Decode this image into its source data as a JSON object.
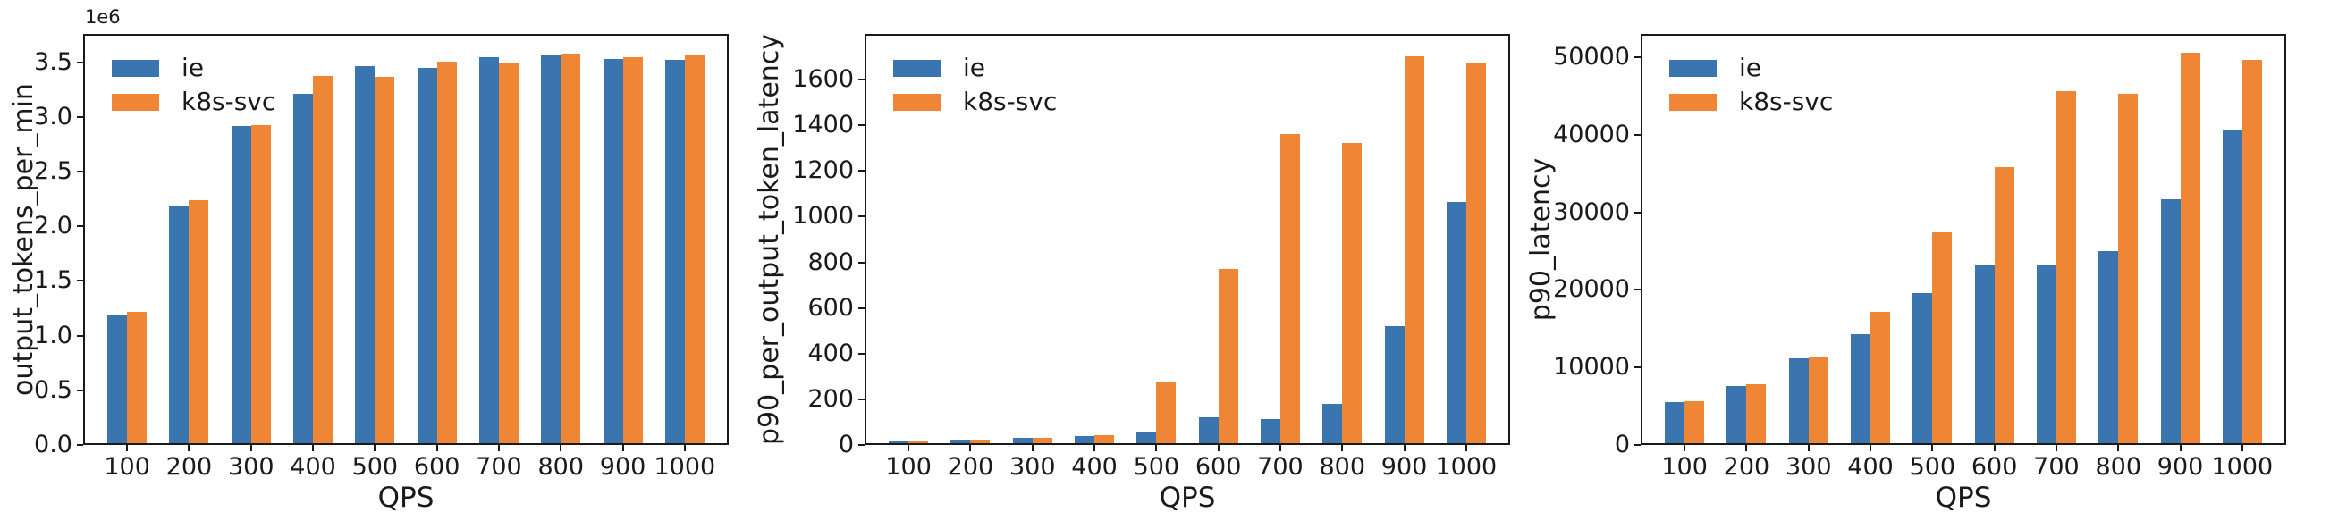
{
  "figure": {
    "background": "#ffffff",
    "axis_color": "#1a1a1a",
    "series_names": [
      "ie",
      "k8s-svc"
    ],
    "series_colors": [
      "#3B75AF",
      "#EF8636"
    ]
  },
  "chart_data": [
    {
      "type": "bar",
      "title": "",
      "ylabel": "output_tokens_per_min",
      "xlabel": "QPS",
      "offset_text": "1e6",
      "legend_position": "upper left",
      "grid": false,
      "categories": [
        "100",
        "200",
        "300",
        "400",
        "500",
        "600",
        "700",
        "800",
        "900",
        "1000"
      ],
      "series": [
        {
          "name": "ie",
          "color": "#3B75AF",
          "values": [
            1170000,
            2170000,
            2900000,
            3200000,
            3450000,
            3430000,
            3530000,
            3550000,
            3515000,
            3510000
          ]
        },
        {
          "name": "k8s-svc",
          "color": "#EF8636",
          "values": [
            1200000,
            2220000,
            2910000,
            3360000,
            3350000,
            3490000,
            3470000,
            3560000,
            3530000,
            3545000
          ]
        }
      ],
      "ylim": [
        0,
        3760000
      ],
      "ytick_values": [
        0,
        500000,
        1000000,
        1500000,
        2000000,
        2500000,
        3000000,
        3500000
      ],
      "ytick_labels": [
        "0.0",
        "0.5",
        "1.0",
        "1.5",
        "2.0",
        "2.5",
        "3.0",
        "3.5"
      ]
    },
    {
      "type": "bar",
      "title": "",
      "ylabel": "p90_per_output_token_latency",
      "xlabel": "QPS",
      "offset_text": "",
      "legend_position": "upper left",
      "grid": false,
      "categories": [
        "100",
        "200",
        "300",
        "400",
        "500",
        "600",
        "700",
        "800",
        "900",
        "1000"
      ],
      "series": [
        {
          "name": "ie",
          "color": "#3B75AF",
          "values": [
            8,
            15,
            24,
            32,
            46,
            114,
            104,
            173,
            512,
            1055
          ]
        },
        {
          "name": "k8s-svc",
          "color": "#EF8636",
          "values": [
            8,
            16,
            25,
            36,
            267,
            762,
            1355,
            1313,
            1695,
            1668
          ]
        }
      ],
      "ylim": [
        0,
        1800
      ],
      "ytick_values": [
        0,
        200,
        400,
        600,
        800,
        1000,
        1200,
        1400,
        1600
      ],
      "ytick_labels": [
        "0",
        "200",
        "400",
        "600",
        "800",
        "1000",
        "1200",
        "1400",
        "1600"
      ]
    },
    {
      "type": "bar",
      "title": "",
      "ylabel": "p90_latency",
      "xlabel": "QPS",
      "offset_text": "",
      "legend_position": "upper left",
      "grid": false,
      "categories": [
        "100",
        "200",
        "300",
        "400",
        "500",
        "600",
        "700",
        "800",
        "900",
        "1000"
      ],
      "series": [
        {
          "name": "ie",
          "color": "#3B75AF",
          "values": [
            5300,
            7350,
            11000,
            14000,
            19300,
            23100,
            22900,
            24800,
            31400,
            40300
          ]
        },
        {
          "name": "k8s-svc",
          "color": "#EF8636",
          "values": [
            5450,
            7600,
            11200,
            16900,
            27200,
            35600,
            45400,
            45000,
            50300,
            49400
          ]
        }
      ],
      "ylim": [
        0,
        53000
      ],
      "ytick_values": [
        0,
        10000,
        20000,
        30000,
        40000,
        50000
      ],
      "ytick_labels": [
        "0",
        "10000",
        "20000",
        "30000",
        "40000",
        "50000"
      ]
    }
  ]
}
